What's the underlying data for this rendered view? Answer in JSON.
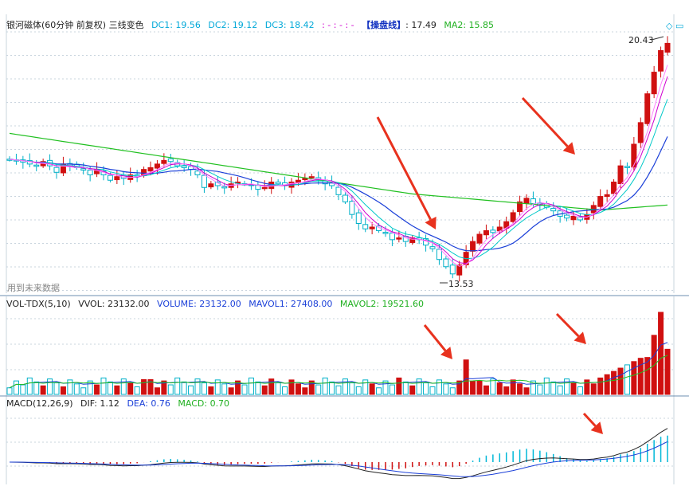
{
  "main_header": {
    "stock_label": "银河磁体(60分钟 前复权) 三线变色",
    "dc1": "DC1: 19.56",
    "dc2": "DC2: 19.12",
    "dc3": "DC3: 18.42",
    "dots": ": - : - : -",
    "op_line_label": "【操盘线】",
    "op_line_value": ": 17.49",
    "ma2": "MA2: 15.85"
  },
  "future_data_label": "用到未来数据",
  "price_marks": {
    "high": "20.43",
    "low": "13.53"
  },
  "vol_header": {
    "title": "VOL-TDX(5,10)",
    "vvol": "VVOL: 23132.00",
    "volume": "VOLUME: 23132.00",
    "mavol1": "MAVOL1: 27408.00",
    "mavol2": "MAVOL2: 19521.60"
  },
  "macd_header": {
    "title": "MACD(12,26,9)",
    "dif": "DIF: 1.12",
    "dea": "DEA: 0.76",
    "macd": "MACD: 0.70"
  },
  "colors": {
    "up": "#d01010",
    "down": "#00b0c8",
    "ma_green": "#20c020",
    "ma_blue": "#1a3fd8",
    "ma_mag": "#d000d0",
    "grid": "#c9d4de",
    "arrow": "#e8321e"
  },
  "chart_data": {
    "type": "candlestick",
    "bars": 99,
    "price_range": [
      13.53,
      20.43
    ],
    "high": 20.43,
    "low": 13.53,
    "indicators": {
      "DC1": 19.56,
      "DC2": 19.12,
      "DC3": 18.42,
      "op_line": 17.49,
      "MA2": 15.85
    },
    "volume": {
      "VVOL": 23132.0,
      "VOLUME": 23132.0,
      "MAVOL1": 27408.0,
      "MAVOL2": 19521.6
    },
    "macd": {
      "DIF": 1.12,
      "DEA": 0.76,
      "MACD": 0.7
    },
    "closes": [
      16.98,
      16.95,
      16.9,
      16.85,
      16.8,
      16.92,
      16.8,
      16.62,
      16.85,
      16.8,
      16.75,
      16.68,
      16.55,
      16.7,
      16.55,
      16.4,
      16.5,
      16.45,
      16.55,
      16.5,
      16.7,
      16.75,
      16.85,
      16.95,
      16.92,
      16.8,
      16.75,
      16.7,
      16.55,
      16.2,
      16.3,
      16.25,
      16.2,
      16.3,
      16.35,
      16.3,
      16.25,
      16.15,
      16.2,
      16.35,
      16.3,
      16.25,
      16.35,
      16.4,
      16.45,
      16.5,
      16.4,
      16.3,
      16.25,
      16.0,
      15.8,
      15.45,
      15.2,
      15.05,
      15.1,
      15.0,
      14.95,
      14.75,
      14.8,
      14.7,
      14.8,
      14.75,
      14.6,
      14.5,
      14.2,
      14.0,
      13.8,
      14.05,
      14.4,
      14.7,
      14.9,
      15.0,
      14.95,
      15.1,
      15.25,
      15.5,
      15.8,
      15.9,
      15.75,
      15.7,
      15.65,
      15.55,
      15.4,
      15.35,
      15.4,
      15.3,
      15.45,
      15.7,
      15.95,
      16.0,
      16.35,
      16.8,
      16.75,
      17.4,
      18.0,
      18.8,
      19.4,
      20.0,
      20.2
    ]
  }
}
